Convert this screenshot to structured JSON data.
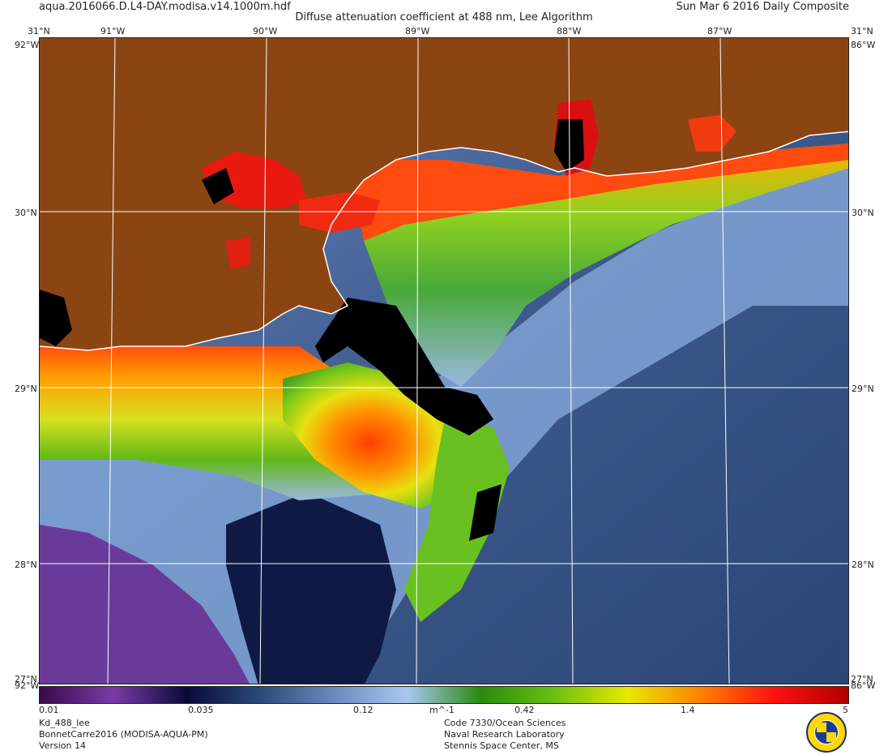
{
  "header": {
    "file_name": "aqua.2016066.D.L4-DAY.modisa.v14.1000m.hdf",
    "product_title": "Diffuse attenuation coefficient at 488 nm, Lee Algorithm",
    "date": "Sun Mar  6 2016 Daily Composite"
  },
  "map": {
    "lon_labels": [
      "91°W",
      "90°W",
      "89°W",
      "88°W",
      "87°W"
    ],
    "lat_labels": [
      "30°N",
      "29°N",
      "28°N"
    ],
    "corner_labels": {
      "top_left_lat": "31°N",
      "top_left_lon": "92°W",
      "top_right_lat": "31°N",
      "top_right_lon": "86°W",
      "bottom_left_lat": "27°N",
      "bottom_left_lon": "92°W",
      "bottom_right_lat": "27°N",
      "bottom_right_lon": "86°W"
    },
    "land_color": "#8b4513",
    "graticule_color": "#ffffff"
  },
  "colorbar": {
    "tick_labels": [
      "0.01",
      "0.035",
      "0.12",
      "0.42",
      "1.4",
      "5"
    ],
    "unit": "m^-1",
    "scale": "log",
    "range": [
      0.01,
      5
    ],
    "colors": [
      "#3a0a4a",
      "#7a3aa8",
      "#0a0a3a",
      "#2a4a7a",
      "#6a8ac0",
      "#a8c8f0",
      "#2a8a10",
      "#6ac010",
      "#e8e800",
      "#ff8000",
      "#ff1010",
      "#b00000"
    ]
  },
  "info_left": [
    "Kd_488_lee",
    "BonnetCarre2016 (MODISA-AQUA-PM)",
    "Version 14"
  ],
  "info_right": [
    "Code 7330/Ocean Sciences",
    "Naval Research Laboratory",
    "Stennis Space Center, MS"
  ],
  "logo": {
    "icon": "nrl-seal-icon"
  }
}
